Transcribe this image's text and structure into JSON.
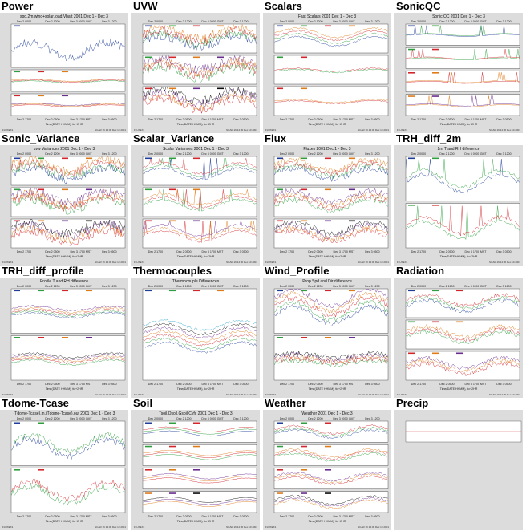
{
  "colors": {
    "background": "#ffffff",
    "thumb_bg": "#dcdcdc",
    "series": [
      "#1f3d9a",
      "#2e9e3e",
      "#d3262b",
      "#e07b1a",
      "#6a2b8f",
      "#0b0b0b",
      "#2aa3c8"
    ]
  },
  "panels": [
    {
      "name": "Power",
      "plot_title": "spd.2m,wind+solar,load,Vbatt 2001 Dec 1 - Dec 3",
      "n_sub": 3,
      "sub_height": [
        0.5,
        0.25,
        0.25
      ],
      "top_ticks": [
        "Dec 2 0000",
        "Dec 2 1200",
        "Dec 3 0000 GMT",
        "Dec 3 1200"
      ],
      "bottom_ticks": [
        "Dec 2 1700",
        "Dec 2 0500",
        "Dec 3 1700 MST",
        "Dec 3 0500"
      ],
      "xlabel": "Time(DATE HHMM), tic+2HR",
      "footer_left": "FLUXEX1",
      "footer_right": "NCAR 16 14:30 Dec 10 2001",
      "style": "power"
    },
    {
      "name": "UVW",
      "plot_title": "",
      "n_sub": 3,
      "top_ticks": [
        "Dec 2 0000",
        "Dec 2 1200",
        "Dec 3 0000 GMT",
        "Dec 3 1200"
      ],
      "bottom_ticks": [
        "Dec 2 1700",
        "Dec 2 0500",
        "Dec 3 1700 MST",
        "Dec 3 0500"
      ],
      "xlabel": "Time(DATE HHMM), tic+2HR",
      "footer_left": "FLUXEX1",
      "footer_right": "NCAR 16 14:30 Dec 10 2001",
      "style": "uvw"
    },
    {
      "name": "Scalars",
      "plot_title": "Fast Scalars 2001 Dec 1 - Dec 3",
      "n_sub": 3,
      "top_ticks": [
        "Dec 2 0000",
        "Dec 2 1200",
        "Dec 3 0000 GMT",
        "Dec 3 1200"
      ],
      "bottom_ticks": [
        "Dec 2 1700",
        "Dec 2 0500",
        "Dec 3 1700 MST",
        "Dec 3 0500"
      ],
      "xlabel": "Time(DATE HHMM), tic+2HR",
      "footer_left": "FLUXEX1",
      "footer_right": "NCAR 16 14:30 Dec 10 2001",
      "style": "scalars"
    },
    {
      "name": "SonicQC",
      "plot_title": "Sonic QC 2001 Dec 1 - Dec 3",
      "n_sub": 4,
      "top_ticks": [
        "Dec 2 0000",
        "Dec 2 1200",
        "Dec 3 0000 GMT",
        "Dec 3 1200"
      ],
      "bottom_ticks": [
        "Dec 2 1700",
        "Dec 2 0500",
        "Dec 3 1700 MST",
        "Dec 3 0500"
      ],
      "xlabel": "Time(DATE HHMM), tic+2HR",
      "footer_left": "FLUXEX1",
      "footer_right": "NCAR 16 14:30 Dec 10 2001",
      "style": "sonicqc"
    },
    {
      "name": "Sonic_Variance",
      "plot_title": "uvw Variances 2001 Dec 1 - Dec 3",
      "n_sub": 3,
      "top_ticks": [
        "Dec 2 0000",
        "Dec 2 1200",
        "Dec 3 0000 GMT",
        "Dec 3 1200"
      ],
      "bottom_ticks": [
        "Dec 2 1700",
        "Dec 2 0500",
        "Dec 3 1700 MST",
        "Dec 3 0500"
      ],
      "xlabel": "Time(DATE HHMM), tic+2HR",
      "footer_left": "FLUXEX1",
      "footer_right": "NCAR 16 14:30 Dec 10 2001",
      "style": "uvw"
    },
    {
      "name": "Scalar_Variance",
      "plot_title": "Scalar Variances 2001 Dec 1 - Dec 3",
      "n_sub": 3,
      "top_ticks": [
        "Dec 2 0000",
        "Dec 2 1200",
        "Dec 3 0000 GMT",
        "Dec 3 1200"
      ],
      "bottom_ticks": [
        "Dec 2 1700",
        "Dec 2 0500",
        "Dec 3 1700 MST",
        "Dec 3 0500"
      ],
      "xlabel": "Time(DATE HHMM), tic+2HR",
      "footer_left": "FLUXEX1",
      "footer_right": "NCAR 16 14:30 Dec 10 2001",
      "style": "spiky"
    },
    {
      "name": "Flux",
      "plot_title": "Fluxes 2001 Dec 1 - Dec 3",
      "n_sub": 3,
      "top_ticks": [
        "Dec 2 0000",
        "Dec 2 1200",
        "Dec 3 0000 GMT",
        "Dec 3 1200"
      ],
      "bottom_ticks": [
        "Dec 2 1700",
        "Dec 2 0500",
        "Dec 3 1700 MST",
        "Dec 3 0500"
      ],
      "xlabel": "Time(DATE HHMM), tic+2HR",
      "footer_left": "FLUXEX1",
      "footer_right": "NCAR 16 14:30 Dec 10 2001",
      "style": "flux"
    },
    {
      "name": "TRH_diff_2m",
      "plot_title": "2m T and RH difference",
      "n_sub": 2,
      "top_ticks": [
        "Dec 2 0000",
        "Dec 2 1200",
        "Dec 3 0000 GMT",
        "Dec 3 1200"
      ],
      "bottom_ticks": [
        "Dec 2 1700",
        "Dec 2 0500",
        "Dec 3 1700 MST",
        "Dec 3 0500"
      ],
      "xlabel": "Time(DATE HHMM), tic+2HR",
      "footer_left": "FLUXEX1",
      "footer_right": "NCAR 16 14:30 Dec 10 2001",
      "style": "diff"
    },
    {
      "name": "TRH_diff_profile",
      "plot_title": "Profile T and RH difference",
      "n_sub": 2,
      "top_ticks": [
        "Dec 2 0000",
        "Dec 2 1200",
        "Dec 3 0000 GMT",
        "Dec 3 1200"
      ],
      "bottom_ticks": [
        "Dec 2 1700",
        "Dec 2 0500",
        "Dec 3 1700 MST",
        "Dec 3 0500"
      ],
      "xlabel": "Time(DATE HHMM), tic+2HR",
      "footer_left": "FLUXEX1",
      "footer_right": "NCAR 16 14:30 Dec 10 2001",
      "style": "profile"
    },
    {
      "name": "Thermocouples",
      "plot_title": "Thermocouple Differences",
      "n_sub": 1,
      "top_ticks": [
        "Dec 2 0000",
        "Dec 2 1200",
        "Dec 3 0000 GMT",
        "Dec 3 1200"
      ],
      "bottom_ticks": [
        "Dec 2 1700",
        "Dec 2 0500",
        "Dec 3 1700 MST",
        "Dec 3 0500"
      ],
      "xlabel": "Time(DATE HHMM), tic+2HR",
      "footer_left": "FLUXEX1",
      "footer_right": "NCAR 16 14:30 Dec 10 2001",
      "style": "thermo"
    },
    {
      "name": "Wind_Profile",
      "plot_title": "Prop Spd and Dir difference",
      "n_sub": 2,
      "top_ticks": [
        "Dec 2 0000",
        "Dec 2 1200",
        "Dec 3 0000 GMT",
        "Dec 3 1200"
      ],
      "bottom_ticks": [
        "Dec 2 1700",
        "Dec 2 0500",
        "Dec 3 1700 MST",
        "Dec 3 0500"
      ],
      "xlabel": "Time(DATE HHMM), tic+2HR",
      "footer_left": "FLUXEX1",
      "footer_right": "NCAR 16 14:30 Dec 10 2001",
      "style": "windprof"
    },
    {
      "name": "Radiation",
      "plot_title": "",
      "n_sub": 3,
      "top_ticks": [
        "Dec 2 0000",
        "Dec 2 1200",
        "Dec 3 0000 GMT",
        "Dec 3 1200"
      ],
      "bottom_ticks": [
        "Dec 2 1700",
        "Dec 2 0500",
        "Dec 3 1700 MST",
        "Dec 3 0500"
      ],
      "xlabel": "Time(DATE HHMM), tic+2HR",
      "footer_left": "FLUXEX1",
      "footer_right": "NCAR 16 14:30 Dec 10 2001",
      "style": "radiation"
    },
    {
      "name": "Tdome-Tcase",
      "plot_title": "(Tdome-Tcase).in,(Tdome-Tcase).out 2001 Dec 1 - Dec 3",
      "n_sub": 2,
      "top_ticks": [
        "Dec 2 0000",
        "Dec 2 1200",
        "Dec 3 0000 GMT",
        "Dec 3 1200"
      ],
      "bottom_ticks": [
        "Dec 2 1700",
        "Dec 2 0500",
        "Dec 3 1700 MST",
        "Dec 3 0500"
      ],
      "xlabel": "Time(DATE HHMM), tic+2HR",
      "footer_left": "FLUXEX1",
      "footer_right": "NCAR 16 14:30 Dec 10 2001",
      "style": "tdome"
    },
    {
      "name": "Soil",
      "plot_title": "Tsoil,Qsoil,Gsoil,Cvfc 2001 Dec 1 - Dec 3",
      "n_sub": 4,
      "top_ticks": [
        "Dec 2 0000",
        "Dec 2 1200",
        "Dec 3 0000 GMT",
        "Dec 3 1200"
      ],
      "bottom_ticks": [
        "Dec 2 1700",
        "Dec 2 0500",
        "Dec 3 1700 MST",
        "Dec 3 0500"
      ],
      "xlabel": "Time(DATE HHMM), tic+2HR",
      "footer_left": "FLUXEX1",
      "footer_right": "NCAR 16 14:30 Dec 10 2001",
      "style": "soil"
    },
    {
      "name": "Weather",
      "plot_title": "Weather 2001 Dec 1 - Dec 3",
      "n_sub": 4,
      "top_ticks": [
        "Dec 2 0000",
        "Dec 2 1200",
        "Dec 3 0000 GMT",
        "Dec 3 1200"
      ],
      "bottom_ticks": [
        "Dec 2 1700",
        "Dec 2 0500",
        "Dec 3 1700 MST",
        "Dec 3 0500"
      ],
      "xlabel": "Time(DATE HHMM), tic+2HR",
      "footer_left": "FLUXEX1",
      "footer_right": "NCAR 16 14:30 Dec 10 2001",
      "style": "weather"
    },
    {
      "name": "Precip",
      "plot_title": "",
      "n_sub": 1,
      "top_ticks": [],
      "bottom_ticks": [],
      "xlabel": "",
      "footer_left": "",
      "footer_right": "",
      "style": "precip"
    }
  ]
}
